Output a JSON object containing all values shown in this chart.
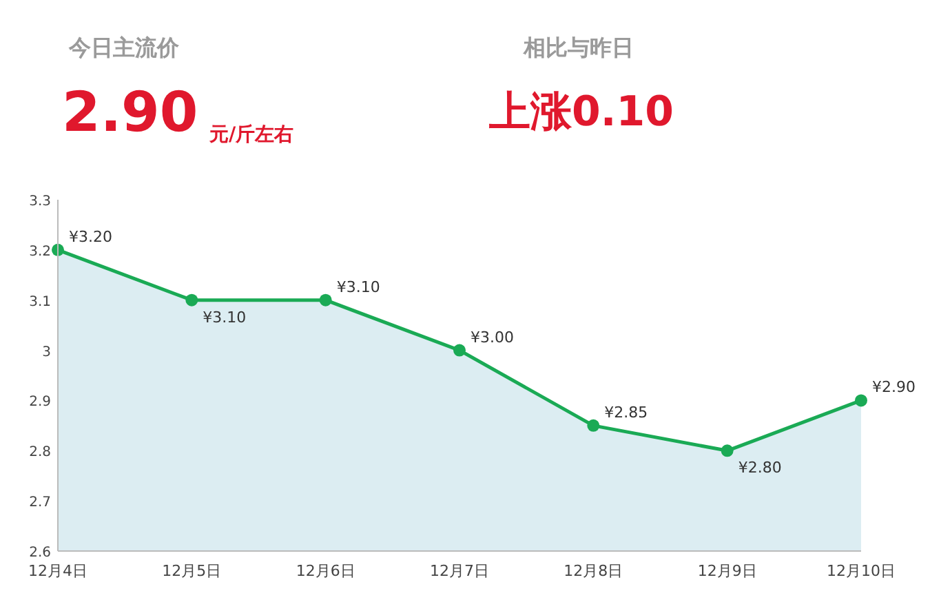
{
  "chart_data": {
    "type": "area",
    "categories": [
      "12月4日",
      "12月5日",
      "12月6日",
      "12月7日",
      "12月8日",
      "12月9日",
      "12月10日"
    ],
    "series": [
      {
        "color": "#1aaa55",
        "values": [
          3.2,
          3.1,
          3.1,
          3.0,
          2.85,
          2.8,
          2.9
        ],
        "value_labels": [
          "¥3.20",
          "¥3.10",
          "¥3.10",
          "¥3.00",
          "¥2.85",
          "¥2.80",
          "¥2.90"
        ]
      }
    ],
    "ylim": [
      2.6,
      3.3
    ],
    "yticks": [
      2.6,
      2.7,
      2.8,
      2.9,
      3,
      3.1,
      3.2,
      3.3
    ],
    "grid": false,
    "marker": "circle",
    "line_style": "solid",
    "annotations": [
      "今日主流价",
      "2.90",
      "元/斤左右",
      "相比与昨日",
      "上涨0.10"
    ]
  }
}
